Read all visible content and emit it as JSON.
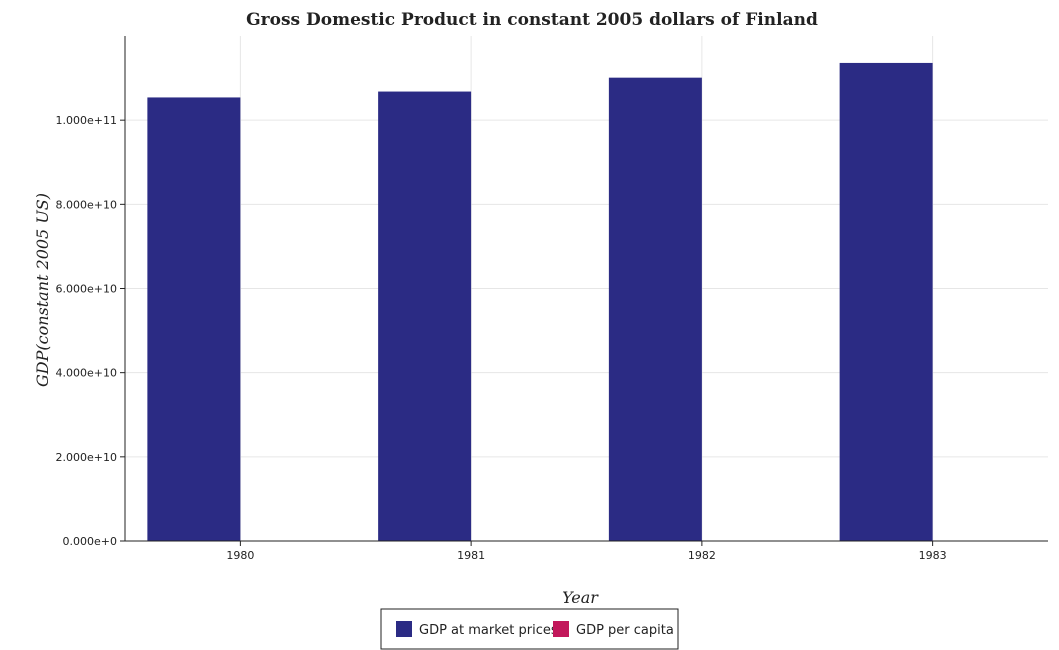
{
  "chart_data": {
    "type": "bar",
    "title": "Gross Domestic Product in constant 2005 dollars of Finland",
    "xlabel": "Year",
    "ylabel": "GDP(constant 2005 US)",
    "categories": [
      "1980",
      "1981",
      "1982",
      "1983"
    ],
    "series": [
      {
        "name": "GDP at market prices",
        "color": "#2b2b84",
        "values": [
          105400000000,
          106800000000,
          110100000000,
          113600000000
        ]
      },
      {
        "name": "GDP per capita",
        "color": "#c2185b",
        "values": [
          22050,
          22280,
          22880,
          23450
        ]
      }
    ],
    "ylim": [
      0,
      120000000000
    ],
    "yticks": [
      0,
      20000000000,
      40000000000,
      60000000000,
      80000000000,
      100000000000
    ],
    "ytick_labels": [
      "0.000e+0",
      "2.000e+10",
      "4.000e+10",
      "6.000e+10",
      "8.000e+10",
      "1.000e+11"
    ],
    "grid": true,
    "legend_position": "bottom-center"
  }
}
